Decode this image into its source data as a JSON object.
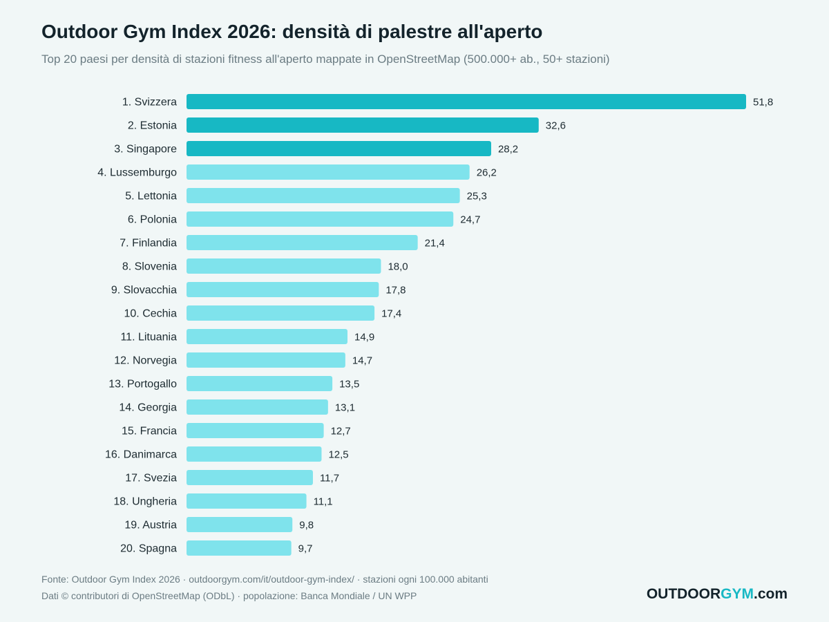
{
  "chart_data": {
    "type": "bar",
    "orientation": "horizontal",
    "title": "Outdoor Gym Index 2026: densità di palestre all'aperto",
    "subtitle": "Top 20 paesi per densità di stazioni fitness all'aperto mappate in OpenStreetMap (500.000+ ab., 50+ stazioni)",
    "categories": [
      "1. Svizzera",
      "2. Estonia",
      "3. Singapore",
      "4. Lussemburgo",
      "5. Lettonia",
      "6. Polonia",
      "7. Finlandia",
      "8. Slovenia",
      "9. Slovacchia",
      "10. Cechia",
      "11. Lituania",
      "12. Norvegia",
      "13. Portogallo",
      "14. Georgia",
      "15. Francia",
      "16. Danimarca",
      "17. Svezia",
      "18. Ungheria",
      "19. Austria",
      "20. Spagna"
    ],
    "values": [
      51.8,
      32.6,
      28.2,
      26.2,
      25.3,
      24.7,
      21.4,
      18.0,
      17.8,
      17.4,
      14.9,
      14.7,
      13.5,
      13.1,
      12.7,
      12.5,
      11.7,
      11.1,
      9.8,
      9.7
    ],
    "value_labels": [
      "51,8",
      "32,6",
      "28,2",
      "26,2",
      "25,3",
      "24,7",
      "21,4",
      "18,0",
      "17,8",
      "17,4",
      "14,9",
      "14,7",
      "13,5",
      "13,1",
      "12,7",
      "12,5",
      "11,7",
      "11,1",
      "9,8",
      "9,7"
    ],
    "highlight_top": 3,
    "colors": {
      "highlight": "#17b8c4",
      "bar": "#7fe3ec"
    },
    "xlim": [
      0,
      51.8
    ],
    "grid": false,
    "axes_visible": false
  },
  "footer": {
    "line1": "Fonte: Outdoor Gym Index 2026 · outdoorgym.com/it/outdoor-gym-index/ · stazioni ogni 100.000 abitanti",
    "line2": "Dati © contributori di OpenStreetMap (ODbL) · popolazione: Banca Mondiale / UN WPP"
  },
  "logo": {
    "part1": "OUTDOOR",
    "part2": "GYM",
    "part3": ".com"
  }
}
